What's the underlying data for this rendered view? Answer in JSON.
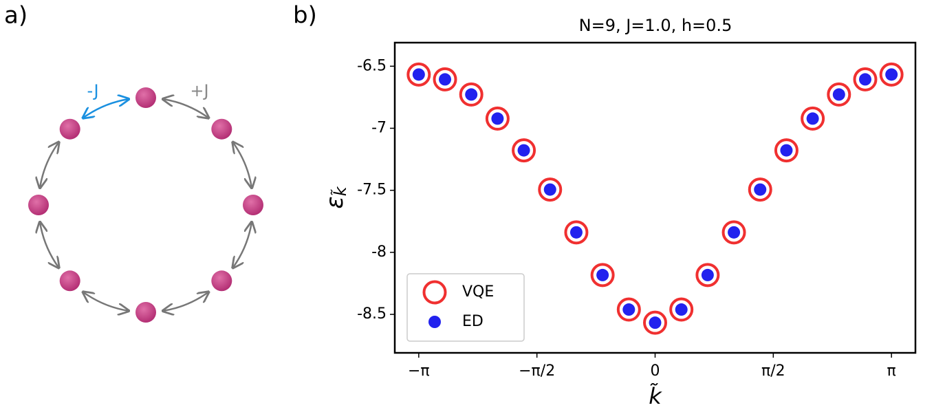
{
  "panel_labels": [
    "a)",
    "b)"
  ],
  "diagram": {
    "labels": [
      "-J",
      "+J"
    ]
  },
  "chart_data": {
    "type": "scatter",
    "title": "N=9, J=1.0, h=0.5",
    "xlabel": "k̃",
    "ylabel": "ε",
    "ylabel_subscript": "k̃",
    "x": [
      -3.14159,
      -2.79253,
      -2.44346,
      -2.0944,
      -1.74533,
      -1.39626,
      -1.0472,
      -0.69813,
      -0.34907,
      0,
      0.34907,
      0.69813,
      1.0472,
      1.39626,
      1.74533,
      2.0944,
      2.44346,
      2.79253,
      3.14159
    ],
    "series": [
      {
        "name": "VQE",
        "color": "#f03030",
        "marker": "ring",
        "values": [
          -6.567,
          -6.606,
          -6.728,
          -6.922,
          -7.178,
          -7.494,
          -7.839,
          -8.183,
          -8.461,
          -8.567,
          -8.461,
          -8.183,
          -7.839,
          -7.494,
          -7.178,
          -6.922,
          -6.728,
          -6.606,
          -6.567
        ]
      },
      {
        "name": "ED",
        "color": "#2222ee",
        "marker": "dot",
        "values": [
          -6.567,
          -6.606,
          -6.728,
          -6.922,
          -7.178,
          -7.494,
          -7.839,
          -8.183,
          -8.461,
          -8.567,
          -8.461,
          -8.183,
          -7.839,
          -7.494,
          -7.178,
          -6.922,
          -6.728,
          -6.606,
          -6.567
        ]
      }
    ],
    "xlim": [
      -3.46,
      3.46
    ],
    "ylim": [
      -8.81,
      -6.31
    ],
    "xticks": [
      {
        "value": -3.14159,
        "label": "−π"
      },
      {
        "value": -1.5708,
        "label": "−π/2"
      },
      0,
      {
        "value": 1.5708,
        "label": "π/2"
      },
      {
        "value": 3.14159,
        "label": "π"
      }
    ],
    "yticks": [
      -8.5,
      -8,
      -7.5,
      -7,
      -6.5
    ],
    "legend": "lower left"
  }
}
